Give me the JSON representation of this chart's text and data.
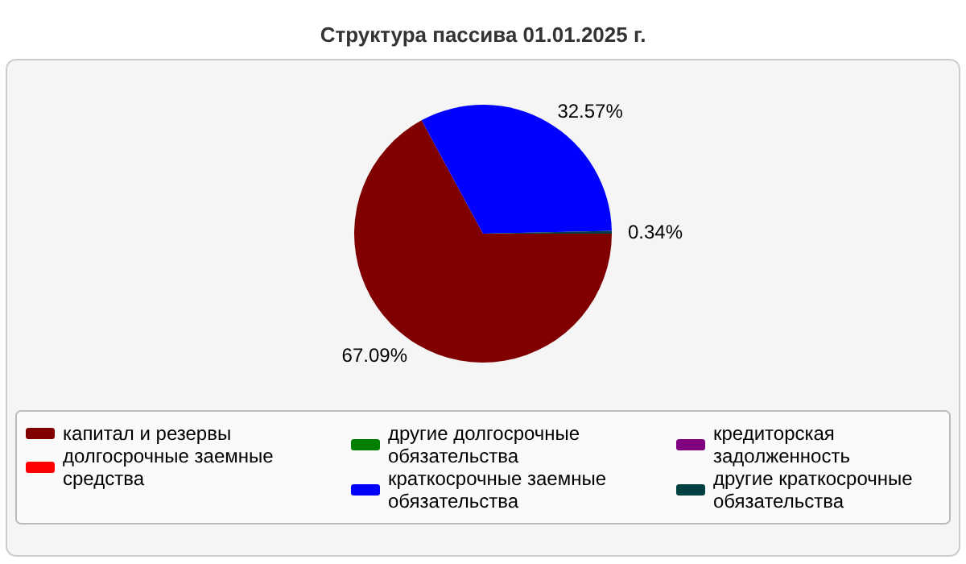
{
  "chart_data": {
    "type": "pie",
    "title": "Структура пассива 01.01.2025 г.",
    "categories": [
      "капитал и резервы",
      "долгосрочные заемные средства",
      "другие долгосрочные обязательства",
      "краткосрочные заемные обязательства",
      "кредиторская задолженность",
      "другие краткосрочные обязательства"
    ],
    "values": [
      67.09,
      0,
      0,
      32.57,
      0,
      0.34
    ],
    "value_labels": [
      "67.09%",
      null,
      null,
      "32.57%",
      null,
      "0.34%"
    ],
    "colors": [
      "#800000",
      "#ff0000",
      "#008000",
      "#0000ff",
      "#800080",
      "#004040"
    ],
    "legend": "bottom"
  }
}
